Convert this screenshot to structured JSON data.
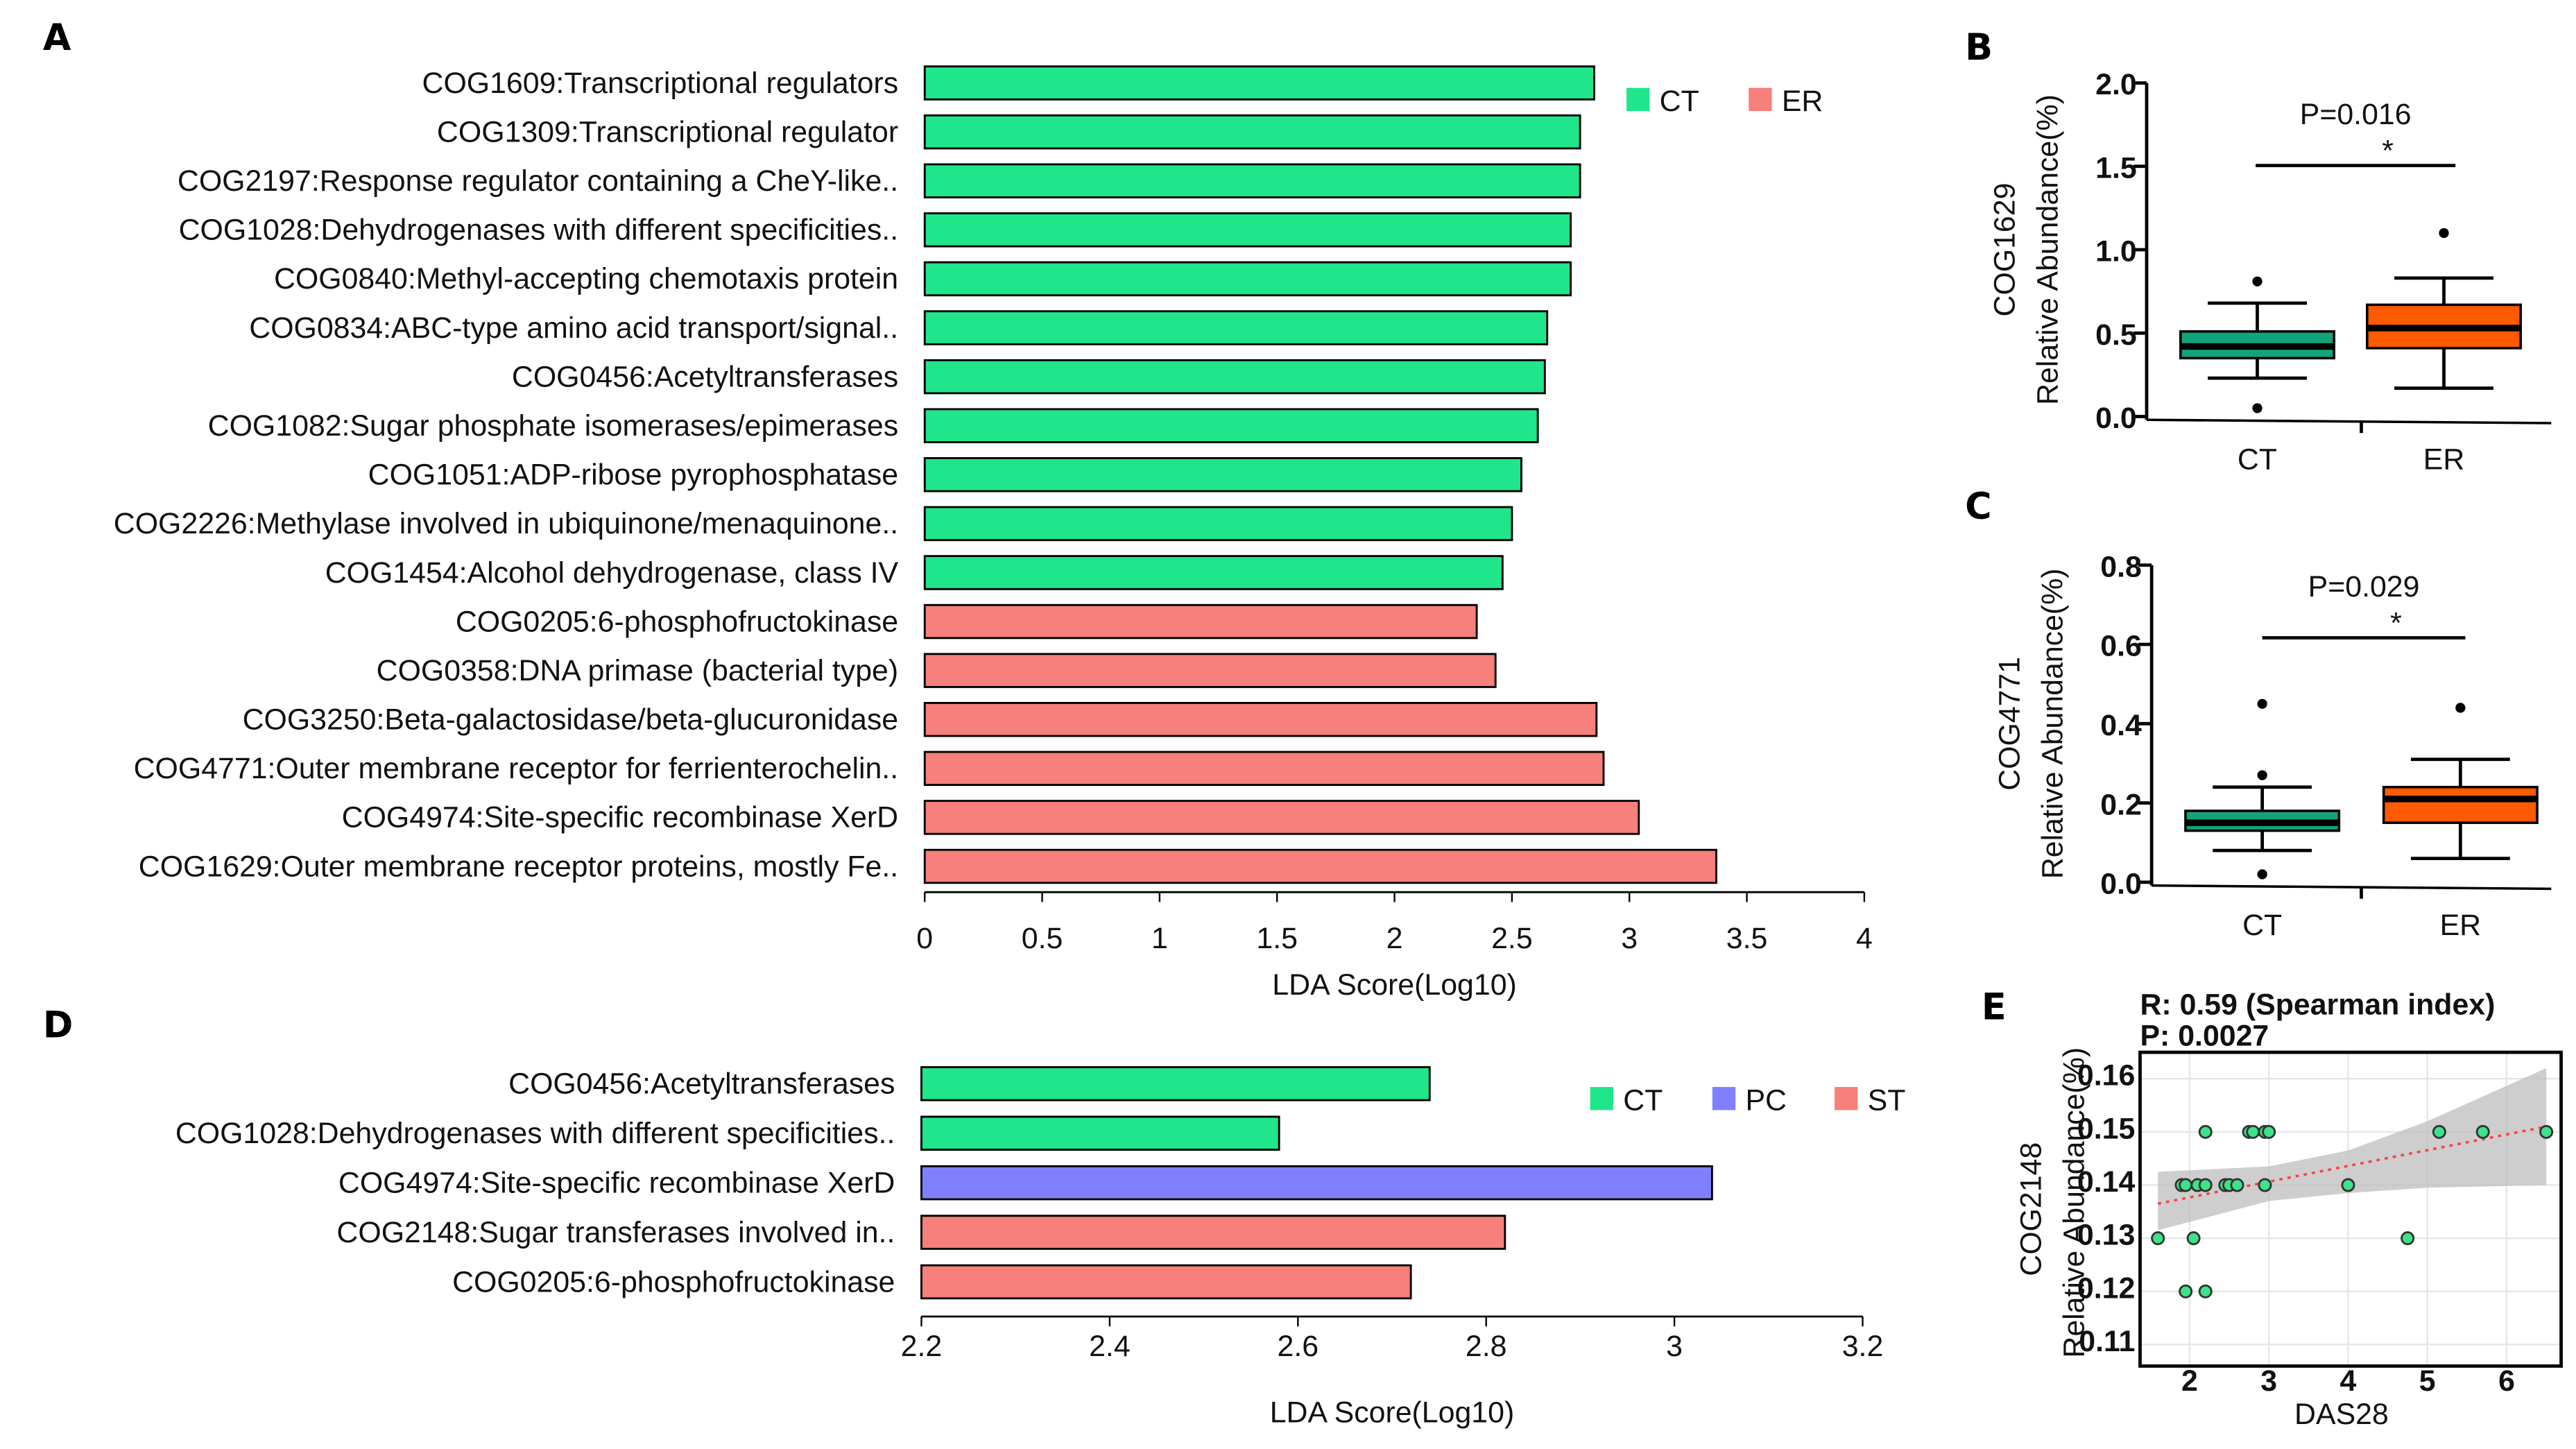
{
  "chart_data": [
    {
      "panel": "A",
      "type": "bar",
      "orientation": "horizontal",
      "xlabel": "LDA Score(Log10)",
      "xlim": [
        0,
        4
      ],
      "xticks": [
        "0",
        "0.5",
        "1",
        "1.5",
        "2",
        "2.5",
        "3",
        "3.5",
        "4"
      ],
      "legend": {
        "placement": "top-right",
        "entries": [
          {
            "name": "CT",
            "color": "#1fe68b"
          },
          {
            "name": "ER",
            "color": "#f77f7c"
          }
        ]
      },
      "categories": [
        "COG1609:Transcriptional regulators",
        "COG1309:Transcriptional regulator",
        "COG2197:Response regulator containing a CheY-like..",
        "COG1028:Dehydrogenases with different specificities..",
        "COG0840:Methyl-accepting chemotaxis protein",
        "COG0834:ABC-type amino acid transport/signal..",
        "COG0456:Acetyltransferases",
        "COG1082:Sugar phosphate isomerases/epimerases",
        "COG1051:ADP-ribose pyrophosphatase",
        "COG2226:Methylase involved in ubiquinone/menaquinone..",
        "COG1454:Alcohol dehydrogenase, class IV",
        "COG0205:6-phosphofructokinase",
        "COG0358:DNA primase (bacterial type)",
        "COG3250:Beta-galactosidase/beta-glucuronidase",
        "COG4771:Outer membrane receptor for ferrienterochelin..",
        "COG4974:Site-specific recombinase XerD",
        "COG1629:Outer membrane receptor proteins, mostly Fe.."
      ],
      "values": [
        2.85,
        2.79,
        2.79,
        2.75,
        2.75,
        2.65,
        2.64,
        2.61,
        2.54,
        2.5,
        2.46,
        2.35,
        2.43,
        2.86,
        2.89,
        3.04,
        3.37
      ],
      "groups": [
        "CT",
        "CT",
        "CT",
        "CT",
        "CT",
        "CT",
        "CT",
        "CT",
        "CT",
        "CT",
        "CT",
        "ER",
        "ER",
        "ER",
        "ER",
        "ER",
        "ER"
      ]
    },
    {
      "panel": "B",
      "type": "box",
      "ylabel": [
        "COG1629",
        "Relative Abundance(%)"
      ],
      "ylim": [
        0,
        2.0
      ],
      "yticks": [
        "0.0",
        "0.5",
        "1.0",
        "1.5",
        "2.0"
      ],
      "categories": [
        "CT",
        "ER"
      ],
      "annotation": "P=0.016",
      "significance": "*",
      "boxes": [
        {
          "group": "CT",
          "color": "#13a37c",
          "q1": 0.35,
          "median": 0.42,
          "q3": 0.51,
          "whisker_low": 0.23,
          "whisker_high": 0.68,
          "outliers": [
            0.81,
            0.05
          ]
        },
        {
          "group": "ER",
          "color": "#ff5a00",
          "q1": 0.41,
          "median": 0.53,
          "q3": 0.67,
          "whisker_low": 0.17,
          "whisker_high": 0.83,
          "outliers": [
            1.1
          ]
        }
      ]
    },
    {
      "panel": "C",
      "type": "box",
      "ylabel": [
        "COG4771",
        "Relative Abundance(%)"
      ],
      "ylim": [
        0,
        0.8
      ],
      "yticks": [
        "0.0",
        "0.2",
        "0.4",
        "0.6",
        "0.8"
      ],
      "categories": [
        "CT",
        "ER"
      ],
      "annotation": "P=0.029",
      "significance": "*",
      "boxes": [
        {
          "group": "CT",
          "color": "#13a37c",
          "q1": 0.13,
          "median": 0.15,
          "q3": 0.18,
          "whisker_low": 0.08,
          "whisker_high": 0.24,
          "outliers": [
            0.45,
            0.27,
            0.02
          ]
        },
        {
          "group": "ER",
          "color": "#ff5a00",
          "q1": 0.15,
          "median": 0.21,
          "q3": 0.24,
          "whisker_low": 0.06,
          "whisker_high": 0.31,
          "outliers": [
            0.44
          ]
        }
      ]
    },
    {
      "panel": "D",
      "type": "bar",
      "orientation": "horizontal",
      "xlabel": "LDA Score(Log10)",
      "xlim": [
        2.2,
        3.2
      ],
      "xticks": [
        "2.2",
        "2.4",
        "2.6",
        "2.8",
        "3",
        "3.2"
      ],
      "legend": {
        "placement": "top-right",
        "entries": [
          {
            "name": "CT",
            "color": "#1fe68b"
          },
          {
            "name": "PC",
            "color": "#8080ff"
          },
          {
            "name": "ST",
            "color": "#f77f7c"
          }
        ]
      },
      "categories": [
        "COG0456:Acetyltransferases",
        "COG1028:Dehydrogenases with different specificities..",
        "COG4974:Site-specific recombinase XerD",
        "COG2148:Sugar transferases involved in..",
        "COG0205:6-phosphofructokinase"
      ],
      "values": [
        2.74,
        2.58,
        3.04,
        2.82,
        2.72
      ],
      "groups": [
        "CT",
        "CT",
        "PC",
        "ST",
        "ST"
      ]
    },
    {
      "panel": "E",
      "type": "scatter",
      "title": [
        "R: 0.59 (Spearman index)",
        "P: 0.0027"
      ],
      "xlabel": "DAS28",
      "ylabel": [
        "COG2148",
        "Relative Abundance(%)"
      ],
      "xlim": [
        1.5,
        6.6
      ],
      "ylim": [
        0.11,
        0.165
      ],
      "xticks": [
        "2",
        "3",
        "4",
        "5",
        "6"
      ],
      "yticks": [
        "0.11",
        "0.12",
        "0.13",
        "0.14",
        "0.15",
        "0.16"
      ],
      "point_color": "#3de38a",
      "trend": {
        "x": [
          1.6,
          6.5
        ],
        "y": [
          0.1365,
          0.151
        ],
        "color": "#ff4040"
      },
      "ci_band": {
        "x": [
          1.6,
          3.0,
          4.0,
          5.0,
          6.5
        ],
        "low": [
          0.1315,
          0.137,
          0.1385,
          0.1395,
          0.14
        ],
        "high": [
          0.1425,
          0.1435,
          0.1465,
          0.152,
          0.162
        ]
      },
      "x": [
        1.6,
        1.9,
        1.95,
        2.1,
        2.2,
        2.2,
        2.05,
        1.95,
        2.2,
        2.45,
        2.5,
        2.6,
        2.75,
        2.8,
        2.95,
        3.0,
        2.95,
        4.0,
        4.75,
        5.15,
        5.7,
        6.5
      ],
      "y": [
        0.13,
        0.14,
        0.14,
        0.14,
        0.14,
        0.15,
        0.13,
        0.12,
        0.12,
        0.14,
        0.14,
        0.14,
        0.15,
        0.15,
        0.15,
        0.15,
        0.14,
        0.14,
        0.13,
        0.15,
        0.15,
        0.15
      ]
    }
  ]
}
